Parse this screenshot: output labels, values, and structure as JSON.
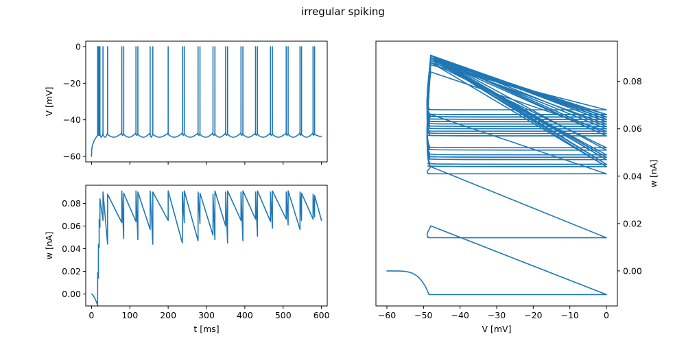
{
  "figure": {
    "title": "irregular spiking",
    "line_color": "#1f77b4"
  },
  "chart_data": [
    {
      "type": "line",
      "panel": "top-left",
      "ylabel": "V [mV]",
      "xlabel": "",
      "xlim": [
        -15,
        615
      ],
      "ylim": [
        -63,
        3
      ],
      "xticks": [
        0,
        100,
        200,
        300,
        400,
        500,
        600
      ],
      "show_xtick_labels": false,
      "yticks": [
        0,
        -20,
        -40,
        -60
      ],
      "ytick_labels": [
        "0",
        "−20",
        "−40",
        "−60"
      ],
      "grid": false,
      "rest_potential": -60,
      "reset_potential": -48,
      "peak": 0,
      "trough": -49.5,
      "spike_times": [
        16,
        18,
        20,
        22,
        30,
        42,
        79,
        84,
        116,
        121,
        153,
        160,
        200,
        237,
        242,
        278,
        283,
        317,
        322,
        350,
        355,
        390,
        395,
        428,
        433,
        467,
        472,
        508,
        513,
        544,
        548,
        578,
        582
      ]
    },
    {
      "type": "line",
      "panel": "bottom-left",
      "ylabel": "w [nA]",
      "xlabel": "t [ms]",
      "xlim": [
        -15,
        615
      ],
      "ylim": [
        -0.0105,
        0.096
      ],
      "xticks": [
        0,
        100,
        200,
        300,
        400,
        500,
        600
      ],
      "xtick_labels": [
        "0",
        "100",
        "200",
        "300",
        "400",
        "500",
        "600"
      ],
      "yticks": [
        0.0,
        0.02,
        0.04,
        0.06,
        0.08
      ],
      "ytick_labels": [
        "0.00",
        "0.02",
        "0.04",
        "0.06",
        "0.08"
      ],
      "grid": false,
      "w_initial": 0.0,
      "w_minimum": -0.01,
      "w_increment": 0.025,
      "w_after_spikes": [
        0.019,
        0.044,
        0.066,
        0.084,
        0.09,
        0.088,
        0.091,
        0.089,
        0.091,
        0.09,
        0.091,
        0.09,
        0.091,
        0.09,
        0.091,
        0.09,
        0.089,
        0.088,
        0.091,
        0.09,
        0.091,
        0.09,
        0.091,
        0.09,
        0.091,
        0.09,
        0.091,
        0.09,
        0.091,
        0.09,
        0.089,
        0.088,
        0.087
      ],
      "w_at_next_spike": [
        0.014,
        0.041,
        0.059,
        0.065,
        0.044,
        0.063,
        0.049,
        0.064,
        0.048,
        0.057,
        0.044,
        0.065,
        0.045,
        0.063,
        0.047,
        0.062,
        0.052,
        0.048,
        0.06,
        0.045,
        0.065,
        0.047,
        0.066,
        0.051,
        0.064,
        0.058,
        0.066,
        0.061,
        0.057,
        0.065,
        0.066,
        0.068,
        0.065
      ]
    },
    {
      "type": "line",
      "panel": "right",
      "ylabel": "w [nA]",
      "xlabel": "V [mV]",
      "ylabel_position": "right",
      "xlim": [
        -63,
        3
      ],
      "ylim": [
        -0.0148,
        0.097
      ],
      "xticks": [
        -60,
        -50,
        -40,
        -30,
        -20,
        -10,
        0
      ],
      "xtick_labels": [
        "−60",
        "−50",
        "−40",
        "−30",
        "−20",
        "−10",
        "0"
      ],
      "yticks": [
        0.0,
        0.02,
        0.04,
        0.06,
        0.08
      ],
      "ytick_labels": [
        "0.00",
        "0.02",
        "0.04",
        "0.06",
        "0.08"
      ],
      "grid": false
    }
  ]
}
